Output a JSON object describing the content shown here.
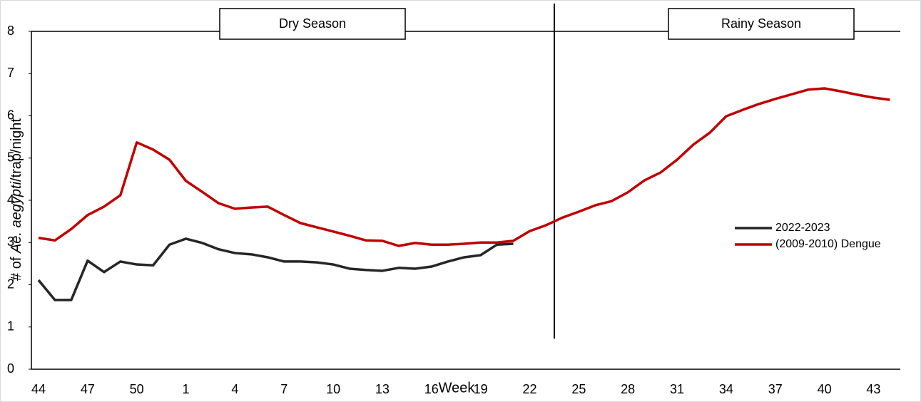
{
  "chart_data": {
    "type": "line",
    "x_label": "Week",
    "y_label_parts": [
      "# of ",
      "Ae. aegypti",
      "/trap/night"
    ],
    "annotations": [
      "Dry Season",
      "Rainy Season"
    ],
    "categories": [
      "44",
      null,
      null,
      "47",
      null,
      null,
      "50",
      null,
      null,
      "1",
      null,
      null,
      "4",
      null,
      null,
      "7",
      null,
      null,
      "10",
      null,
      null,
      "13",
      null,
      null,
      "16",
      null,
      null,
      "19",
      null,
      null,
      "22",
      null,
      null,
      "25",
      null,
      null,
      "28",
      null,
      null,
      "31",
      null,
      null,
      "34",
      null,
      null,
      "37",
      null,
      null,
      "40",
      null,
      null,
      "43",
      null
    ],
    "series": [
      {
        "name": "2022-2023",
        "color": "#262626",
        "values": [
          2.11,
          1.64,
          1.64,
          2.57,
          2.3,
          2.55,
          2.48,
          2.46,
          2.95,
          3.09,
          2.99,
          2.84,
          2.75,
          2.72,
          2.65,
          2.55,
          2.55,
          2.53,
          2.48,
          2.38,
          2.35,
          2.33,
          2.4,
          2.38,
          2.43,
          2.55,
          2.65,
          2.7,
          2.95,
          2.97,
          null,
          null,
          null,
          null,
          null,
          null,
          null,
          null,
          null,
          null,
          null,
          null,
          null,
          null,
          null,
          null,
          null,
          null,
          null,
          null,
          null,
          null,
          null
        ]
      },
      {
        "name": "(2009-2010) Dengue",
        "color": "#c00000",
        "values": [
          3.11,
          3.05,
          3.32,
          3.65,
          3.85,
          4.12,
          5.37,
          5.2,
          4.96,
          4.46,
          4.2,
          3.93,
          3.8,
          3.83,
          3.85,
          3.65,
          3.46,
          3.36,
          3.26,
          3.16,
          3.05,
          3.04,
          2.92,
          2.99,
          2.95,
          2.95,
          2.97,
          3.0,
          3.0,
          3.04,
          3.27,
          3.41,
          3.59,
          3.73,
          3.88,
          3.98,
          4.19,
          4.47,
          4.66,
          4.96,
          5.32,
          5.6,
          5.99,
          6.14,
          6.28,
          6.4,
          6.51,
          6.62,
          6.65,
          6.58,
          6.5,
          6.43,
          6.38
        ]
      }
    ],
    "ylim": [
      0,
      8
    ],
    "yticks": [
      0,
      1,
      2,
      3,
      4,
      5,
      6,
      7,
      8
    ],
    "grid": false,
    "legend": "right"
  }
}
